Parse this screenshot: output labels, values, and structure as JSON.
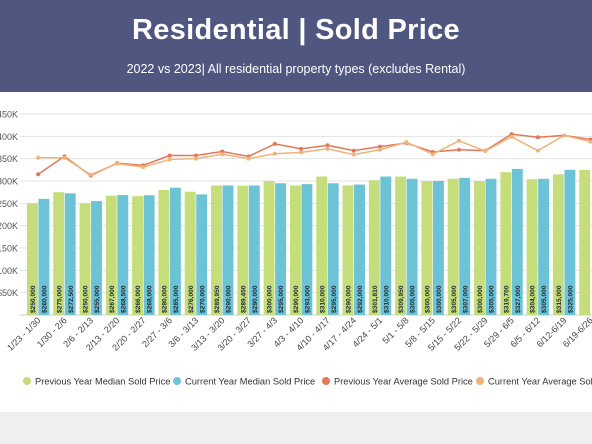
{
  "header": {
    "title": "Residential | Sold Price",
    "subtitle": "2022 vs 2023| All residential property types (excludes Rental)"
  },
  "colors": {
    "banner": "#4f5680",
    "prev_median": "#c5dd7a",
    "cur_median": "#6cc3d6",
    "prev_avg": "#e4775a",
    "cur_avg": "#f1b478"
  },
  "chart_data": {
    "type": "bar",
    "title": "Residential | Sold Price",
    "subtitle": "2022 vs 2023| All residential property types (excludes Rental)",
    "y_ticks": [
      "$50K",
      "$100K",
      "$150K",
      "$200K",
      "$250K",
      "$300K",
      "$350K",
      "$400K",
      "$450K"
    ],
    "ylim": [
      0,
      450000
    ],
    "grid": true,
    "legend_position": "bottom",
    "categories": [
      "1/23 - 1/30",
      "1/30 - 2/6",
      "2/6 - 2/13",
      "2/13 - 2/20",
      "2/20 - 2/27",
      "2/27 - 3/6",
      "3/6 - 3/13",
      "3/13 - 3/20",
      "3/20 - 3/27",
      "3/27 - 4/3",
      "4/3 - 4/10",
      "4/10 - 4/17",
      "4/17 - 4/24",
      "4/24 - 5/1",
      "5/1 - 5/8",
      "5/8 - 5/15",
      "5/15 - 5/22",
      "5/22 - 5/29",
      "5/29 - 6/5",
      "6/5 - 6/12",
      "6/12-6/19",
      "6/19-6/26"
    ],
    "series": [
      {
        "name": "Previous Year Median Sold Price",
        "kind": "bar",
        "values": [
          250000,
          275000,
          250000,
          267000,
          266000,
          280000,
          276000,
          289950,
          289450,
          300000,
          290000,
          310000,
          290000,
          301810,
          309950,
          300000,
          305000,
          300000,
          319700,
          304000,
          315000,
          325000
        ],
        "labels": [
          "$250,000",
          "$275,000",
          "$250,000",
          "$267,000",
          "$266,000",
          "$280,000",
          "$276,000",
          "$289,950",
          "$289,450",
          "$300,000",
          "$290,000",
          "$310,000",
          "$290,000",
          "$301,810",
          "$309,950",
          "$300,000",
          "$305,000",
          "$300,000",
          "$319,700",
          "$304,000",
          "$315,000",
          ""
        ]
      },
      {
        "name": "Current Year Median Sold Price",
        "kind": "bar",
        "values": [
          260000,
          272500,
          255000,
          268500,
          268000,
          285000,
          270000,
          290000,
          290000,
          295000,
          293000,
          295000,
          292000,
          310000,
          305000,
          300000,
          307000,
          305000,
          327000,
          305000,
          325000,
          0
        ],
        "labels": [
          "$260,000",
          "$272,500",
          "$255,000",
          "$268,500",
          "$268,000",
          "$285,000",
          "$270,000",
          "$290,000",
          "$290,000",
          "$295,000",
          "$293,000",
          "$295,000",
          "$292,000",
          "$310,000",
          "$305,000",
          "$300,000",
          "$307,000",
          "$305,000",
          "$327,000",
          "$305,000",
          "$325,000",
          ""
        ]
      },
      {
        "name": "Previous Year Average Sold Price",
        "kind": "line",
        "values": [
          315000,
          355000,
          312000,
          340000,
          335000,
          357000,
          357000,
          366000,
          355000,
          383000,
          372000,
          380000,
          368000,
          377000,
          385000,
          365000,
          370000,
          368000,
          405000,
          398000,
          402000,
          393000
        ]
      },
      {
        "name": "Current Year Average Sold Price",
        "kind": "line",
        "values": [
          352000,
          352000,
          314000,
          339000,
          331000,
          348000,
          350000,
          360000,
          350000,
          361000,
          364000,
          372000,
          359000,
          370000,
          387000,
          360000,
          390000,
          367000,
          399000,
          368000,
          402000,
          388000
        ]
      }
    ]
  }
}
